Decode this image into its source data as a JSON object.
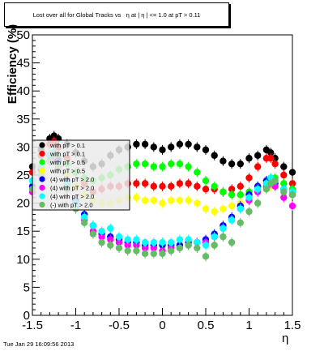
{
  "chart_data": {
    "type": "scatter",
    "title": "Lost over all for Global Tracks vs   η at | η | <= 1.0 at pT > 0.11",
    "xlabel": "η",
    "ylabel": "Efficiency (%)",
    "xlim": [
      -1.5,
      1.5
    ],
    "ylim": [
      0,
      50
    ],
    "x_ticks": [
      "-1.5",
      "-1",
      "-0.5",
      "0",
      "0.5",
      "1",
      "1.5"
    ],
    "y_ticks": [
      "0",
      "5",
      "10",
      "15",
      "20",
      "25",
      "30",
      "35",
      "40",
      "45",
      "50"
    ],
    "grid": false,
    "legend_position": "upper-left",
    "series": [
      {
        "name": "with pT > 0.1",
        "color": "#000000",
        "marker": "circle",
        "x": [
          -1.5,
          -1.4,
          -1.3,
          -1.25,
          -1.2,
          -1.1,
          -1.0,
          -0.9,
          -0.8,
          -0.7,
          -0.6,
          -0.5,
          -0.4,
          -0.3,
          -0.2,
          -0.1,
          0.0,
          0.1,
          0.2,
          0.3,
          0.4,
          0.5,
          0.6,
          0.7,
          0.8,
          0.9,
          1.0,
          1.1,
          1.2,
          1.25,
          1.3,
          1.4,
          1.5
        ],
        "y": [
          26.5,
          29.5,
          31.5,
          32.0,
          31.5,
          30.5,
          29.0,
          27.5,
          26.5,
          27.0,
          28.5,
          29.5,
          30.0,
          30.5,
          30.5,
          30.0,
          29.5,
          30.0,
          30.5,
          30.5,
          30.0,
          29.5,
          28.5,
          27.5,
          27.0,
          27.0,
          28.0,
          28.5,
          29.5,
          29.0,
          28.0,
          26.5,
          25.5
        ]
      },
      {
        "name": "with pT > 0.1",
        "color": "#ff0000",
        "marker": "circle",
        "x": [
          -1.5,
          -1.4,
          -1.3,
          -1.25,
          -1.2,
          -1.1,
          -1.0,
          -0.9,
          -0.8,
          -0.7,
          -0.6,
          -0.5,
          -0.4,
          -0.3,
          -0.2,
          -0.1,
          0.0,
          0.1,
          0.2,
          0.3,
          0.4,
          0.5,
          0.6,
          0.7,
          0.8,
          0.9,
          1.0,
          1.1,
          1.2,
          1.25,
          1.3,
          1.4,
          1.5
        ],
        "y": [
          25.5,
          28.5,
          30.5,
          31.0,
          30.0,
          28.0,
          25.5,
          23.5,
          22.0,
          22.5,
          23.0,
          23.0,
          23.5,
          23.5,
          23.5,
          23.0,
          23.0,
          23.0,
          23.5,
          23.5,
          23.0,
          22.5,
          22.5,
          22.0,
          22.5,
          23.0,
          24.5,
          26.5,
          28.0,
          28.0,
          27.0,
          25.0,
          23.5
        ]
      },
      {
        "name": "with pT > 0.5",
        "color": "#00ff00",
        "marker": "circle",
        "x": [
          -1.5,
          -1.4,
          -1.3,
          -1.25,
          -1.2,
          -1.1,
          -1.0,
          -0.9,
          -0.8,
          -0.7,
          -0.6,
          -0.5,
          -0.4,
          -0.3,
          -0.2,
          -0.1,
          0.0,
          0.1,
          0.2,
          0.3,
          0.4,
          0.5,
          0.6,
          0.7,
          0.8,
          0.9,
          1.0,
          1.1,
          1.2,
          1.25,
          1.3,
          1.4,
          1.5
        ],
        "y": [
          24.0,
          26.5,
          28.5,
          29.0,
          28.0,
          27.0,
          25.5,
          24.5,
          24.0,
          24.5,
          25.0,
          26.0,
          26.5,
          27.0,
          27.0,
          26.5,
          26.5,
          27.0,
          27.0,
          26.5,
          25.5,
          24.0,
          23.0,
          22.0,
          21.5,
          21.5,
          22.0,
          23.0,
          24.0,
          24.5,
          24.5,
          23.5,
          22.5
        ]
      },
      {
        "name": "with pT > 0.5",
        "color": "#ffff00",
        "marker": "circle",
        "x": [
          -1.5,
          -1.4,
          -1.3,
          -1.25,
          -1.2,
          -1.1,
          -1.0,
          -0.9,
          -0.8,
          -0.7,
          -0.6,
          -0.5,
          -0.4,
          -0.3,
          -0.2,
          -0.1,
          0.0,
          0.1,
          0.2,
          0.3,
          0.4,
          0.5,
          0.6,
          0.7,
          0.8,
          0.9,
          1.0,
          1.1,
          1.2,
          1.25,
          1.3,
          1.4,
          1.5
        ],
        "y": [
          23.0,
          25.5,
          27.5,
          28.0,
          27.0,
          25.0,
          23.0,
          21.5,
          20.5,
          20.0,
          20.0,
          20.5,
          21.0,
          21.0,
          20.5,
          20.5,
          20.0,
          20.5,
          20.5,
          20.5,
          20.0,
          19.0,
          18.5,
          19.0,
          19.5,
          20.0,
          21.0,
          22.0,
          22.5,
          23.0,
          23.0,
          22.5,
          21.5
        ]
      },
      {
        "name": "with pT > 2.0",
        "color": "#0000ff",
        "marker": "circle",
        "x": [
          -1.5,
          -1.4,
          -1.3,
          -1.25,
          -1.2,
          -1.1,
          -1.0,
          -0.9,
          -0.8,
          -0.7,
          -0.6,
          -0.5,
          -0.4,
          -0.3,
          -0.2,
          -0.1,
          0.0,
          0.1,
          0.2,
          0.3,
          0.4,
          0.5,
          0.6,
          0.7,
          0.8,
          0.9,
          1.0,
          1.1,
          1.2,
          1.25,
          1.3,
          1.4,
          1.5
        ],
        "y": [
          23.0,
          26.0,
          28.5,
          29.0,
          27.5,
          24.0,
          20.5,
          18.0,
          16.0,
          14.5,
          14.0,
          13.5,
          13.0,
          13.0,
          12.5,
          12.5,
          12.5,
          12.5,
          12.5,
          13.0,
          13.0,
          13.5,
          14.5,
          16.0,
          17.5,
          19.5,
          21.5,
          23.0,
          24.0,
          24.0,
          23.5,
          22.5,
          21.5
        ]
      },
      {
        "name": "with pT > 2.0",
        "color": "#ff00ff",
        "marker": "circle",
        "x": [
          -1.5,
          -1.4,
          -1.3,
          -1.25,
          -1.2,
          -1.1,
          -1.0,
          -0.9,
          -0.8,
          -0.7,
          -0.6,
          -0.5,
          -0.4,
          -0.3,
          -0.2,
          -0.1,
          0.0,
          0.1,
          0.2,
          0.3,
          0.4,
          0.5,
          0.6,
          0.7,
          0.8,
          0.9,
          1.0,
          1.1,
          1.2,
          1.25,
          1.3,
          1.4,
          1.5
        ],
        "y": [
          22.0,
          25.0,
          27.5,
          28.0,
          26.5,
          23.0,
          19.5,
          17.0,
          15.0,
          14.0,
          13.5,
          13.0,
          12.5,
          12.5,
          12.0,
          12.0,
          11.5,
          12.0,
          12.0,
          12.5,
          13.0,
          13.0,
          14.0,
          15.5,
          17.0,
          19.0,
          20.5,
          22.0,
          23.0,
          23.5,
          23.0,
          21.0,
          19.5
        ]
      },
      {
        "name": "with pT > 2.0",
        "color": "#00ffff",
        "marker": "circle",
        "x": [
          -1.5,
          -1.4,
          -1.3,
          -1.25,
          -1.2,
          -1.1,
          -1.0,
          -0.9,
          -0.8,
          -0.7,
          -0.6,
          -0.5,
          -0.4,
          -0.3,
          -0.2,
          -0.1,
          0.0,
          0.1,
          0.2,
          0.3,
          0.4,
          0.5,
          0.6,
          0.7,
          0.8,
          0.9,
          1.0,
          1.1,
          1.2,
          1.25,
          1.3,
          1.4,
          1.5
        ],
        "y": [
          24.0,
          26.5,
          28.5,
          29.0,
          27.0,
          23.5,
          20.0,
          17.5,
          16.0,
          15.0,
          15.5,
          14.0,
          13.5,
          13.5,
          13.0,
          13.0,
          13.0,
          13.0,
          13.5,
          13.5,
          13.0,
          12.5,
          14.0,
          15.5,
          17.0,
          19.0,
          21.0,
          22.5,
          23.5,
          24.5,
          24.0,
          22.5,
          22.0
        ]
      },
      {
        "name": "with pT > 2.0",
        "color": "#66bb66",
        "marker": "circle",
        "x": [
          -1.5,
          -1.4,
          -1.3,
          -1.25,
          -1.2,
          -1.1,
          -1.0,
          -0.9,
          -0.8,
          -0.7,
          -0.6,
          -0.5,
          -0.4,
          -0.3,
          -0.2,
          -0.1,
          0.0,
          0.1,
          0.2,
          0.3,
          0.4,
          0.5,
          0.6,
          0.7,
          0.8,
          0.9,
          1.0,
          1.1,
          1.2,
          1.25,
          1.3,
          1.4,
          1.5
        ],
        "y": [
          22.5,
          25.0,
          27.5,
          28.5,
          26.5,
          22.5,
          19.0,
          16.5,
          14.5,
          13.0,
          12.5,
          12.0,
          11.5,
          11.5,
          11.0,
          11.0,
          11.0,
          11.5,
          12.0,
          12.5,
          12.0,
          10.5,
          12.5,
          14.0,
          13.0,
          16.5,
          18.5,
          20.0,
          22.5,
          23.5,
          24.0,
          22.0,
          21.5
        ]
      }
    ],
    "legend": {
      "entries": [
        {
          "label": "with pT > 0.1",
          "color": "#000000"
        },
        {
          "label": "with pT > 0.1",
          "color": "#ff0000"
        },
        {
          "label": "with pT > 0.5",
          "color": "#00ff00"
        },
        {
          "label": "with pT > 0.5",
          "color": "#ffff00"
        },
        {
          "label": "(4) with pT > 2.0",
          "color": "#0000ff"
        },
        {
          "label": "(4) with pT > 2.0",
          "color": "#ff00ff"
        },
        {
          "label": "(4) with pT > 2.0",
          "color": "#00ffff"
        },
        {
          "label": "(-) with pT > 2.0",
          "color": "#66bb66"
        }
      ]
    }
  },
  "footer": "Tue Jan 29 16:09:56 2013"
}
